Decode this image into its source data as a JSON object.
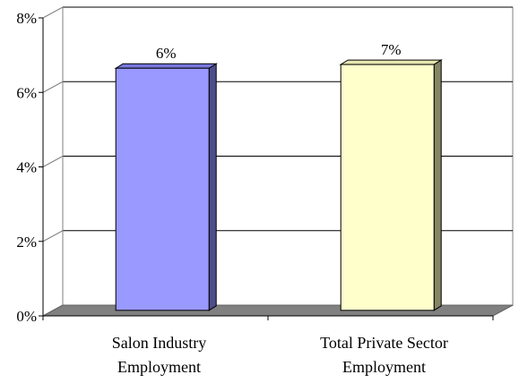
{
  "chart_data": {
    "type": "bar",
    "style": "3d",
    "categories": [
      [
        "Salon Industry",
        "Employment"
      ],
      [
        "Total Private Sector",
        "Employment"
      ]
    ],
    "values": [
      6.5,
      6.6
    ],
    "data_labels": [
      "6%",
      "7%"
    ],
    "ylim": [
      0,
      8
    ],
    "yticks": [
      0,
      2,
      4,
      6,
      8
    ],
    "ytick_labels": [
      "0%",
      "2%",
      "4%",
      "6%",
      "8%"
    ],
    "grid": true,
    "legend": "none",
    "colors": {
      "bars": [
        {
          "front": "#9999ff",
          "side": "#4d4d8a",
          "top": "#7777dd"
        },
        {
          "front": "#ffffcc",
          "side": "#858566",
          "top": "#e6e6b0"
        }
      ],
      "floor": "#808080",
      "grid": "#000000"
    }
  }
}
